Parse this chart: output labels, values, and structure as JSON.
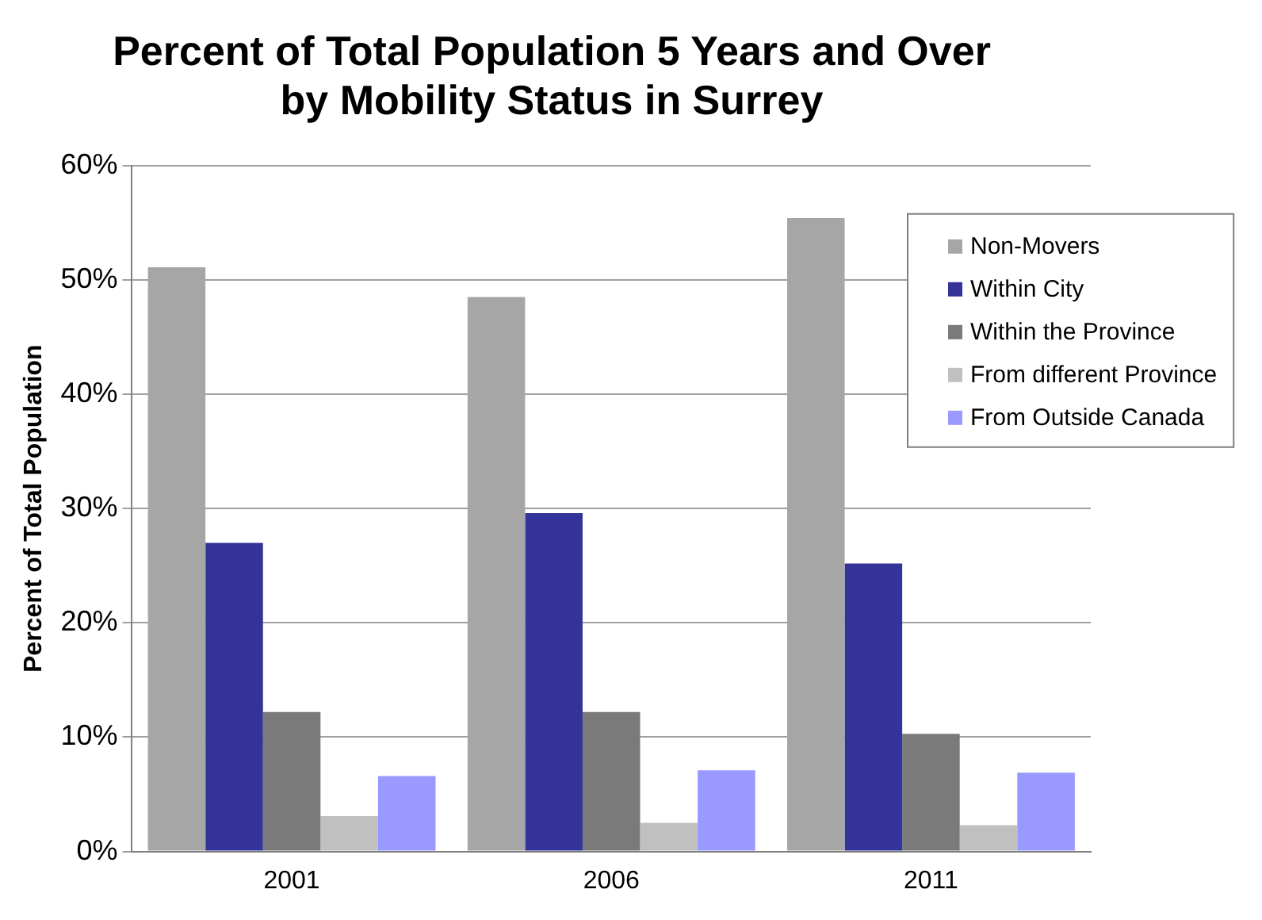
{
  "chart_data": {
    "type": "bar",
    "title": "Percent of Total Population 5 Years and Over\nby Mobility Status in Surrey",
    "ylabel": "Percent of Total Population",
    "categories": [
      "2001",
      "2006",
      "2011"
    ],
    "series": [
      {
        "name": "Non-Movers",
        "color": "#a6a6a6",
        "values": [
          51.1,
          48.5,
          55.4
        ]
      },
      {
        "name": "Within City",
        "color": "#333399",
        "values": [
          27.0,
          29.6,
          25.2
        ]
      },
      {
        "name": "Within the Province",
        "color": "#7a7a7a",
        "values": [
          12.2,
          12.2,
          10.3
        ]
      },
      {
        "name": "From different Province",
        "color": "#c0c0c0",
        "values": [
          3.1,
          2.5,
          2.3
        ]
      },
      {
        "name": "From Outside Canada",
        "color": "#9999ff",
        "values": [
          6.6,
          7.1,
          6.9
        ]
      }
    ],
    "ylim": [
      0,
      60
    ],
    "yticks": [
      {
        "value": 0,
        "label": "0%"
      },
      {
        "value": 10,
        "label": "10%"
      },
      {
        "value": 20,
        "label": "20%"
      },
      {
        "value": 30,
        "label": "30%"
      },
      {
        "value": 40,
        "label": "40%"
      },
      {
        "value": 50,
        "label": "50%"
      },
      {
        "value": 60,
        "label": "60%"
      }
    ],
    "grid": "y",
    "legend": "top right"
  }
}
